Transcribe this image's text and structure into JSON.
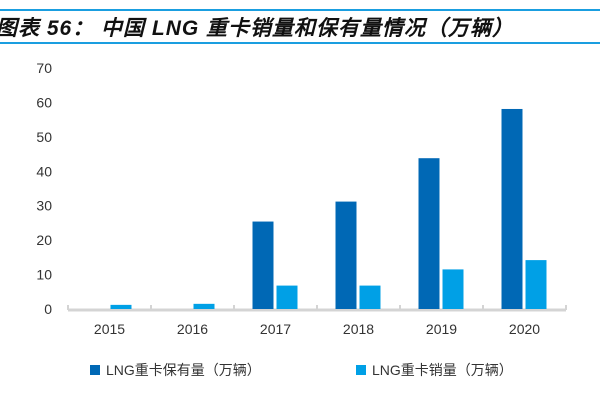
{
  "title": "图表 56：  中国 LNG 重卡销量和保有量情况（万辆）",
  "colors": {
    "accent_rule": "#1a9ee0",
    "series_dark": "#0068b5",
    "series_light": "#00a0e6"
  },
  "chart_data": {
    "type": "bar",
    "title": "图表 56：  中国 LNG 重卡销量和保有量情况（万辆）",
    "categories": [
      "2015",
      "2016",
      "2017",
      "2018",
      "2019",
      "2020"
    ],
    "series": [
      {
        "name": "LNG重卡保有量（万辆）",
        "values": [
          0,
          0,
          25.4,
          31.2,
          43.8,
          58.1
        ]
      },
      {
        "name": "LNG重卡销量（万辆）",
        "values": [
          1.2,
          1.5,
          6.8,
          6.8,
          11.5,
          14.2
        ]
      }
    ],
    "ylim": [
      0,
      70
    ],
    "yticks": [
      "0",
      "10",
      "20",
      "30",
      "40",
      "50",
      "60",
      "70"
    ],
    "grid": false,
    "legend": "bottom",
    "xlabel": "",
    "ylabel": ""
  }
}
